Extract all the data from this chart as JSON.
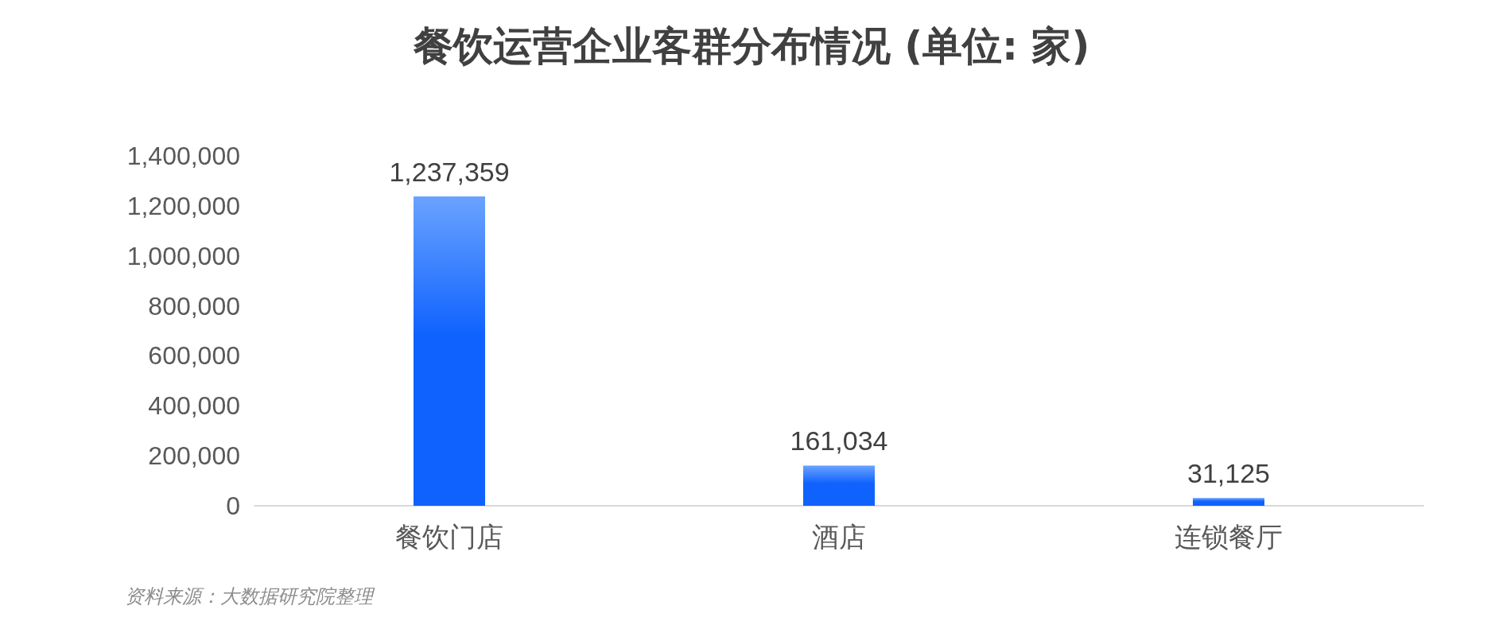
{
  "chart_data": {
    "type": "bar",
    "title": "餐饮运营企业客群分布情况 (单位: 家)",
    "categories": [
      "餐饮门店",
      "酒店",
      "连锁餐厅"
    ],
    "values": [
      1237359,
      161034,
      31125
    ],
    "color": "#0f62fe",
    "value_labels": [
      "1,237,359",
      "161,034",
      "31,125"
    ],
    "ylim": [
      0,
      1400000
    ],
    "yticks": [
      0,
      {
        "value": 200000,
        "label": "200,000"
      },
      {
        "value": 400000,
        "label": "400,000"
      },
      {
        "value": 600000,
        "label": "600,000"
      },
      {
        "value": 800000,
        "label": "800,000"
      },
      {
        "value": 1000000,
        "label": "1,000,000"
      },
      {
        "value": 1200000,
        "label": "1,200,000"
      },
      {
        "value": 1400000,
        "label": "1,400,000"
      }
    ],
    "grid": false,
    "annotations": [
      "资料来源：大数据研究院整理"
    ]
  }
}
